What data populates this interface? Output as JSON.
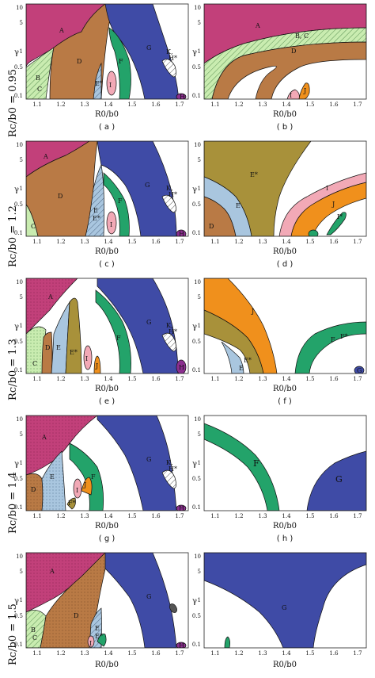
{
  "figure": {
    "x_label": "R0/b0",
    "y_label": "γ",
    "x_ticks": [
      "1.1",
      "1.2",
      "1.3",
      "1.4",
      "1.5",
      "1.6",
      "1.7"
    ],
    "y_ticks": [
      "0.1",
      "0.5",
      "1",
      "5",
      "10"
    ],
    "rows": [
      {
        "label": "Rc/b0 = 0.95",
        "panels": [
          {
            "sub": "( a )",
            "regions": [
              "A",
              "B",
              "C",
              "D",
              "E*",
              "F",
              "G",
              "I",
              "K",
              "H*",
              "H"
            ]
          },
          {
            "sub": "( b )",
            "regions": [
              "A",
              "B",
              "C",
              "D",
              "I",
              "J"
            ]
          }
        ]
      },
      {
        "label": "Rc/b0 = 1.2",
        "panels": [
          {
            "sub": "( c )",
            "regions": [
              "A",
              "D",
              "E",
              "E*",
              "F",
              "G",
              "I",
              "K",
              "H*",
              "H",
              "C"
            ]
          },
          {
            "sub": "( d )",
            "regions": [
              "E*",
              "E",
              "I",
              "J",
              "I*",
              "D"
            ]
          }
        ]
      },
      {
        "label": "Rc/b0 = 1.3",
        "panels": [
          {
            "sub": "( e )",
            "regions": [
              "A",
              "C",
              "D",
              "E",
              "E*",
              "F",
              "G",
              "I",
              "J",
              "K",
              "H*",
              "H"
            ]
          },
          {
            "sub": "( f )",
            "regions": [
              "J",
              "E",
              "E*",
              "F",
              "F*",
              "G"
            ]
          }
        ]
      },
      {
        "label": "Rc/b0 = 1.4",
        "panels": [
          {
            "sub": "( g )",
            "regions": [
              "A",
              "D",
              "E",
              "F",
              "G",
              "J",
              "I",
              "F*",
              "K",
              "H*",
              "H"
            ]
          },
          {
            "sub": "( h )",
            "regions": [
              "F",
              "G"
            ]
          }
        ]
      },
      {
        "label": "Rc/b0 = 1.5",
        "panels": [
          {
            "sub": "( i )",
            "regions": [
              "A",
              "B",
              "C",
              "D",
              "E",
              "E*",
              "F",
              "G",
              "I",
              "H"
            ]
          },
          {
            "sub": "( j )",
            "regions": [
              "G"
            ]
          }
        ]
      }
    ]
  },
  "colors": {
    "A": "#c2407a",
    "G": "#3f4ba6",
    "D": "#b97a45",
    "F": "#23a36a",
    "E": "#a9c6df",
    "I": "#f2a9b6",
    "J": "#f0901c",
    "Estar": "#a8913a",
    "H": "#8b2e8f",
    "BC": "#c9ecb0",
    "dark": "#555555"
  }
}
